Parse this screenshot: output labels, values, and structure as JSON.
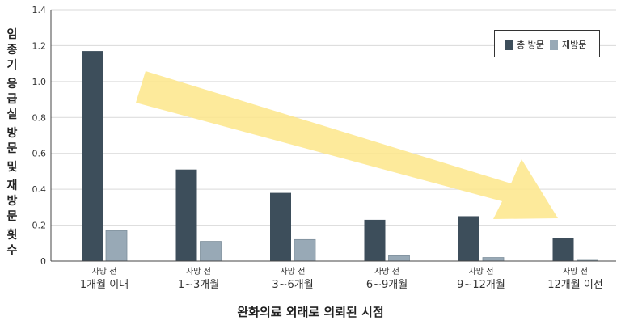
{
  "chart_data": {
    "type": "bar",
    "ylabel_chars": [
      "임",
      "종",
      "기",
      "응",
      "급",
      "실",
      "방",
      "문",
      "및",
      "재",
      "방",
      "문",
      "횟",
      "수"
    ],
    "ylabel": "임종기 응급실 방문 및 재방문 횟수",
    "xlabel": "완화의료 외래로 의뢰된 시점",
    "ylim": [
      0,
      1.4
    ],
    "yticks": [
      "0",
      "0.2",
      "0.4",
      "0.6",
      "0.8",
      "1.0",
      "1.2",
      "1.4"
    ],
    "grid": true,
    "legend_position": "top-right",
    "categories": [
      {
        "line1": "사망 전",
        "line2": "1개월 이내"
      },
      {
        "line1": "사망 전",
        "line2": "1~3개월"
      },
      {
        "line1": "사망 전",
        "line2": "3~6개월"
      },
      {
        "line1": "사망 전",
        "line2": "6~9개월"
      },
      {
        "line1": "사망 전",
        "line2": "9~12개월"
      },
      {
        "line1": "사망 전",
        "line2": "12개월 이전"
      }
    ],
    "series": [
      {
        "name": "총 방문",
        "color": "#3d4e5b",
        "values": [
          1.17,
          0.51,
          0.38,
          0.23,
          0.25,
          0.13
        ]
      },
      {
        "name": "재방문",
        "color": "#98a9b6",
        "values": [
          0.17,
          0.11,
          0.12,
          0.03,
          0.02,
          0.0
        ]
      }
    ],
    "annotation": {
      "type": "arrow",
      "direction": "decreasing-trend",
      "color": "#fde68a"
    }
  }
}
